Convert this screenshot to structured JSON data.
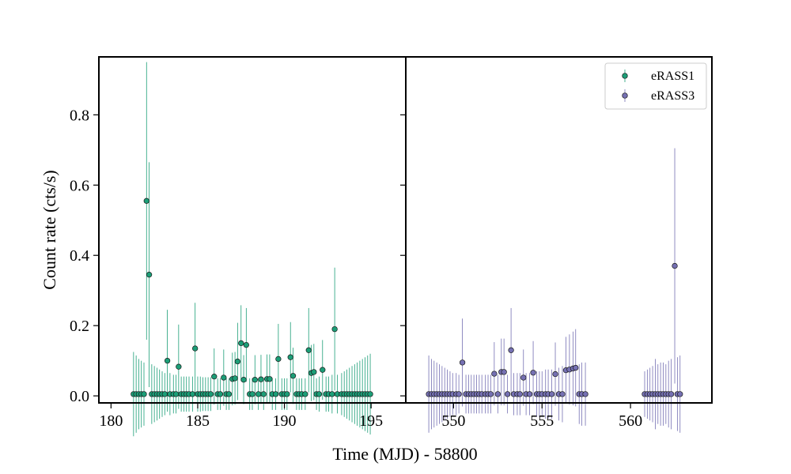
{
  "chart_data": {
    "type": "scatter",
    "xlabel": "Time (MJD) - 58800",
    "ylabel": "Count rate (cts/s)",
    "ylim": [
      -0.02,
      0.965
    ],
    "yticks": [
      0.0,
      0.2,
      0.4,
      0.6,
      0.8
    ],
    "ytick_labels": [
      "0.0",
      "0.2",
      "0.4",
      "0.6",
      "0.8"
    ],
    "legend_position": "top-right",
    "panels": [
      {
        "xlim": [
          179.3,
          197.0
        ],
        "xticks": [
          180,
          185,
          190,
          195
        ],
        "xtick_labels": [
          "180",
          "185",
          "190",
          "195"
        ]
      },
      {
        "xlim": [
          547.3,
          564.6
        ],
        "xticks": [
          550,
          555,
          560
        ],
        "xtick_labels": [
          "550",
          "555",
          "560"
        ]
      }
    ],
    "series": [
      {
        "name": "eRASS1",
        "color": "#1b9e77",
        "panel": 0,
        "points": [
          [
            181.3,
            0.005,
            0.12
          ],
          [
            181.45,
            0.005,
            0.11
          ],
          [
            181.6,
            0.005,
            0.1
          ],
          [
            181.75,
            0.005,
            0.095
          ],
          [
            181.9,
            0.005,
            0.09
          ],
          [
            182.05,
            0.555,
            0.395
          ],
          [
            182.2,
            0.345,
            0.32
          ],
          [
            182.35,
            0.005,
            0.085
          ],
          [
            182.5,
            0.005,
            0.08
          ],
          [
            182.65,
            0.005,
            0.075
          ],
          [
            182.8,
            0.005,
            0.07
          ],
          [
            182.95,
            0.005,
            0.065
          ],
          [
            183.1,
            0.005,
            0.06
          ],
          [
            183.25,
            0.1,
            0.145
          ],
          [
            183.4,
            0.005,
            0.06
          ],
          [
            183.6,
            0.005,
            0.055
          ],
          [
            183.75,
            0.005,
            0.055
          ],
          [
            183.9,
            0.083,
            0.12
          ],
          [
            184.05,
            0.005,
            0.05
          ],
          [
            184.2,
            0.005,
            0.05
          ],
          [
            184.35,
            0.005,
            0.05
          ],
          [
            184.5,
            0.005,
            0.05
          ],
          [
            184.7,
            0.005,
            0.05
          ],
          [
            184.85,
            0.135,
            0.13
          ],
          [
            185.0,
            0.005,
            0.05
          ],
          [
            185.15,
            0.005,
            0.05
          ],
          [
            185.3,
            0.005,
            0.048
          ],
          [
            185.45,
            0.005,
            0.048
          ],
          [
            185.6,
            0.005,
            0.048
          ],
          [
            185.75,
            0.005,
            0.048
          ],
          [
            185.95,
            0.055,
            0.08
          ],
          [
            186.15,
            0.005,
            0.045
          ],
          [
            186.3,
            0.005,
            0.045
          ],
          [
            186.5,
            0.052,
            0.08
          ],
          [
            186.65,
            0.005,
            0.045
          ],
          [
            186.8,
            0.005,
            0.045
          ],
          [
            187.0,
            0.048,
            0.075
          ],
          [
            187.15,
            0.05,
            0.075
          ],
          [
            187.3,
            0.098,
            0.11
          ],
          [
            187.5,
            0.15,
            0.108
          ],
          [
            187.65,
            0.046,
            0.07
          ],
          [
            187.8,
            0.145,
            0.105
          ],
          [
            188.0,
            0.005,
            0.045
          ],
          [
            188.15,
            0.005,
            0.045
          ],
          [
            188.3,
            0.046,
            0.07
          ],
          [
            188.5,
            0.005,
            0.045
          ],
          [
            188.65,
            0.047,
            0.07
          ],
          [
            188.8,
            0.005,
            0.045
          ],
          [
            189.0,
            0.048,
            0.07
          ],
          [
            189.15,
            0.048,
            0.07
          ],
          [
            189.3,
            0.005,
            0.045
          ],
          [
            189.5,
            0.005,
            0.045
          ],
          [
            189.65,
            0.105,
            0.1
          ],
          [
            189.85,
            0.005,
            0.045
          ],
          [
            190.0,
            0.005,
            0.045
          ],
          [
            190.15,
            0.005,
            0.045
          ],
          [
            190.35,
            0.11,
            0.1
          ],
          [
            190.5,
            0.057,
            0.08
          ],
          [
            190.7,
            0.005,
            0.045
          ],
          [
            190.85,
            0.005,
            0.045
          ],
          [
            191.0,
            0.005,
            0.045
          ],
          [
            191.2,
            0.005,
            0.045
          ],
          [
            191.4,
            0.13,
            0.12
          ],
          [
            191.55,
            0.065,
            0.08
          ],
          [
            191.7,
            0.068,
            0.08
          ],
          [
            191.85,
            0.005,
            0.045
          ],
          [
            192.0,
            0.005,
            0.05
          ],
          [
            192.2,
            0.074,
            0.085
          ],
          [
            192.4,
            0.005,
            0.05
          ],
          [
            192.55,
            0.005,
            0.05
          ],
          [
            192.75,
            0.005,
            0.055
          ],
          [
            192.9,
            0.19,
            0.175
          ],
          [
            193.05,
            0.005,
            0.055
          ],
          [
            193.3,
            0.005,
            0.06
          ],
          [
            193.45,
            0.005,
            0.065
          ],
          [
            193.6,
            0.005,
            0.07
          ],
          [
            193.75,
            0.005,
            0.075
          ],
          [
            193.9,
            0.005,
            0.08
          ],
          [
            194.05,
            0.005,
            0.085
          ],
          [
            194.2,
            0.005,
            0.09
          ],
          [
            194.35,
            0.005,
            0.095
          ],
          [
            194.5,
            0.005,
            0.1
          ],
          [
            194.65,
            0.005,
            0.105
          ],
          [
            194.8,
            0.005,
            0.11
          ],
          [
            194.95,
            0.005,
            0.115
          ]
        ]
      },
      {
        "name": "eRASS3",
        "color": "#7570b3",
        "panel": 1,
        "points": [
          [
            548.6,
            0.005,
            0.11
          ],
          [
            548.75,
            0.005,
            0.1
          ],
          [
            548.9,
            0.005,
            0.095
          ],
          [
            549.05,
            0.005,
            0.09
          ],
          [
            549.2,
            0.005,
            0.085
          ],
          [
            549.35,
            0.005,
            0.08
          ],
          [
            549.5,
            0.005,
            0.075
          ],
          [
            549.65,
            0.005,
            0.07
          ],
          [
            549.8,
            0.005,
            0.065
          ],
          [
            549.95,
            0.005,
            0.06
          ],
          [
            550.15,
            0.005,
            0.06
          ],
          [
            550.3,
            0.005,
            0.055
          ],
          [
            550.5,
            0.095,
            0.125
          ],
          [
            550.7,
            0.005,
            0.055
          ],
          [
            550.85,
            0.005,
            0.055
          ],
          [
            551.0,
            0.005,
            0.055
          ],
          [
            551.15,
            0.005,
            0.055
          ],
          [
            551.3,
            0.005,
            0.055
          ],
          [
            551.45,
            0.005,
            0.055
          ],
          [
            551.6,
            0.005,
            0.055
          ],
          [
            551.8,
            0.005,
            0.055
          ],
          [
            551.95,
            0.005,
            0.055
          ],
          [
            552.1,
            0.005,
            0.055
          ],
          [
            552.3,
            0.063,
            0.09
          ],
          [
            552.5,
            0.005,
            0.055
          ],
          [
            552.7,
            0.068,
            0.095
          ],
          [
            552.85,
            0.068,
            0.095
          ],
          [
            553.05,
            0.005,
            0.055
          ],
          [
            553.25,
            0.13,
            0.12
          ],
          [
            553.4,
            0.005,
            0.06
          ],
          [
            553.6,
            0.005,
            0.06
          ],
          [
            553.75,
            0.005,
            0.06
          ],
          [
            553.95,
            0.052,
            0.08
          ],
          [
            554.1,
            0.005,
            0.06
          ],
          [
            554.3,
            0.005,
            0.06
          ],
          [
            554.5,
            0.066,
            0.09
          ],
          [
            554.7,
            0.005,
            0.065
          ],
          [
            554.85,
            0.005,
            0.065
          ],
          [
            555.0,
            0.005,
            0.065
          ],
          [
            555.2,
            0.005,
            0.07
          ],
          [
            555.35,
            0.005,
            0.07
          ],
          [
            555.55,
            0.005,
            0.07
          ],
          [
            555.75,
            0.062,
            0.09
          ],
          [
            555.95,
            0.005,
            0.075
          ],
          [
            556.15,
            0.005,
            0.08
          ],
          [
            556.35,
            0.073,
            0.095
          ],
          [
            556.55,
            0.075,
            0.1
          ],
          [
            556.75,
            0.078,
            0.105
          ],
          [
            556.9,
            0.08,
            0.11
          ],
          [
            557.1,
            0.005,
            0.085
          ],
          [
            557.25,
            0.005,
            0.09
          ],
          [
            557.45,
            0.005,
            0.09
          ],
          [
            560.8,
            0.005,
            0.065
          ],
          [
            560.95,
            0.005,
            0.07
          ],
          [
            561.1,
            0.005,
            0.075
          ],
          [
            561.25,
            0.005,
            0.08
          ],
          [
            561.4,
            0.005,
            0.1
          ],
          [
            561.55,
            0.005,
            0.085
          ],
          [
            561.7,
            0.005,
            0.09
          ],
          [
            561.85,
            0.005,
            0.09
          ],
          [
            562.0,
            0.005,
            0.085
          ],
          [
            562.15,
            0.005,
            0.095
          ],
          [
            562.3,
            0.005,
            0.1
          ],
          [
            562.5,
            0.37,
            0.335
          ],
          [
            562.65,
            0.005,
            0.105
          ],
          [
            562.8,
            0.005,
            0.11
          ]
        ]
      }
    ]
  }
}
